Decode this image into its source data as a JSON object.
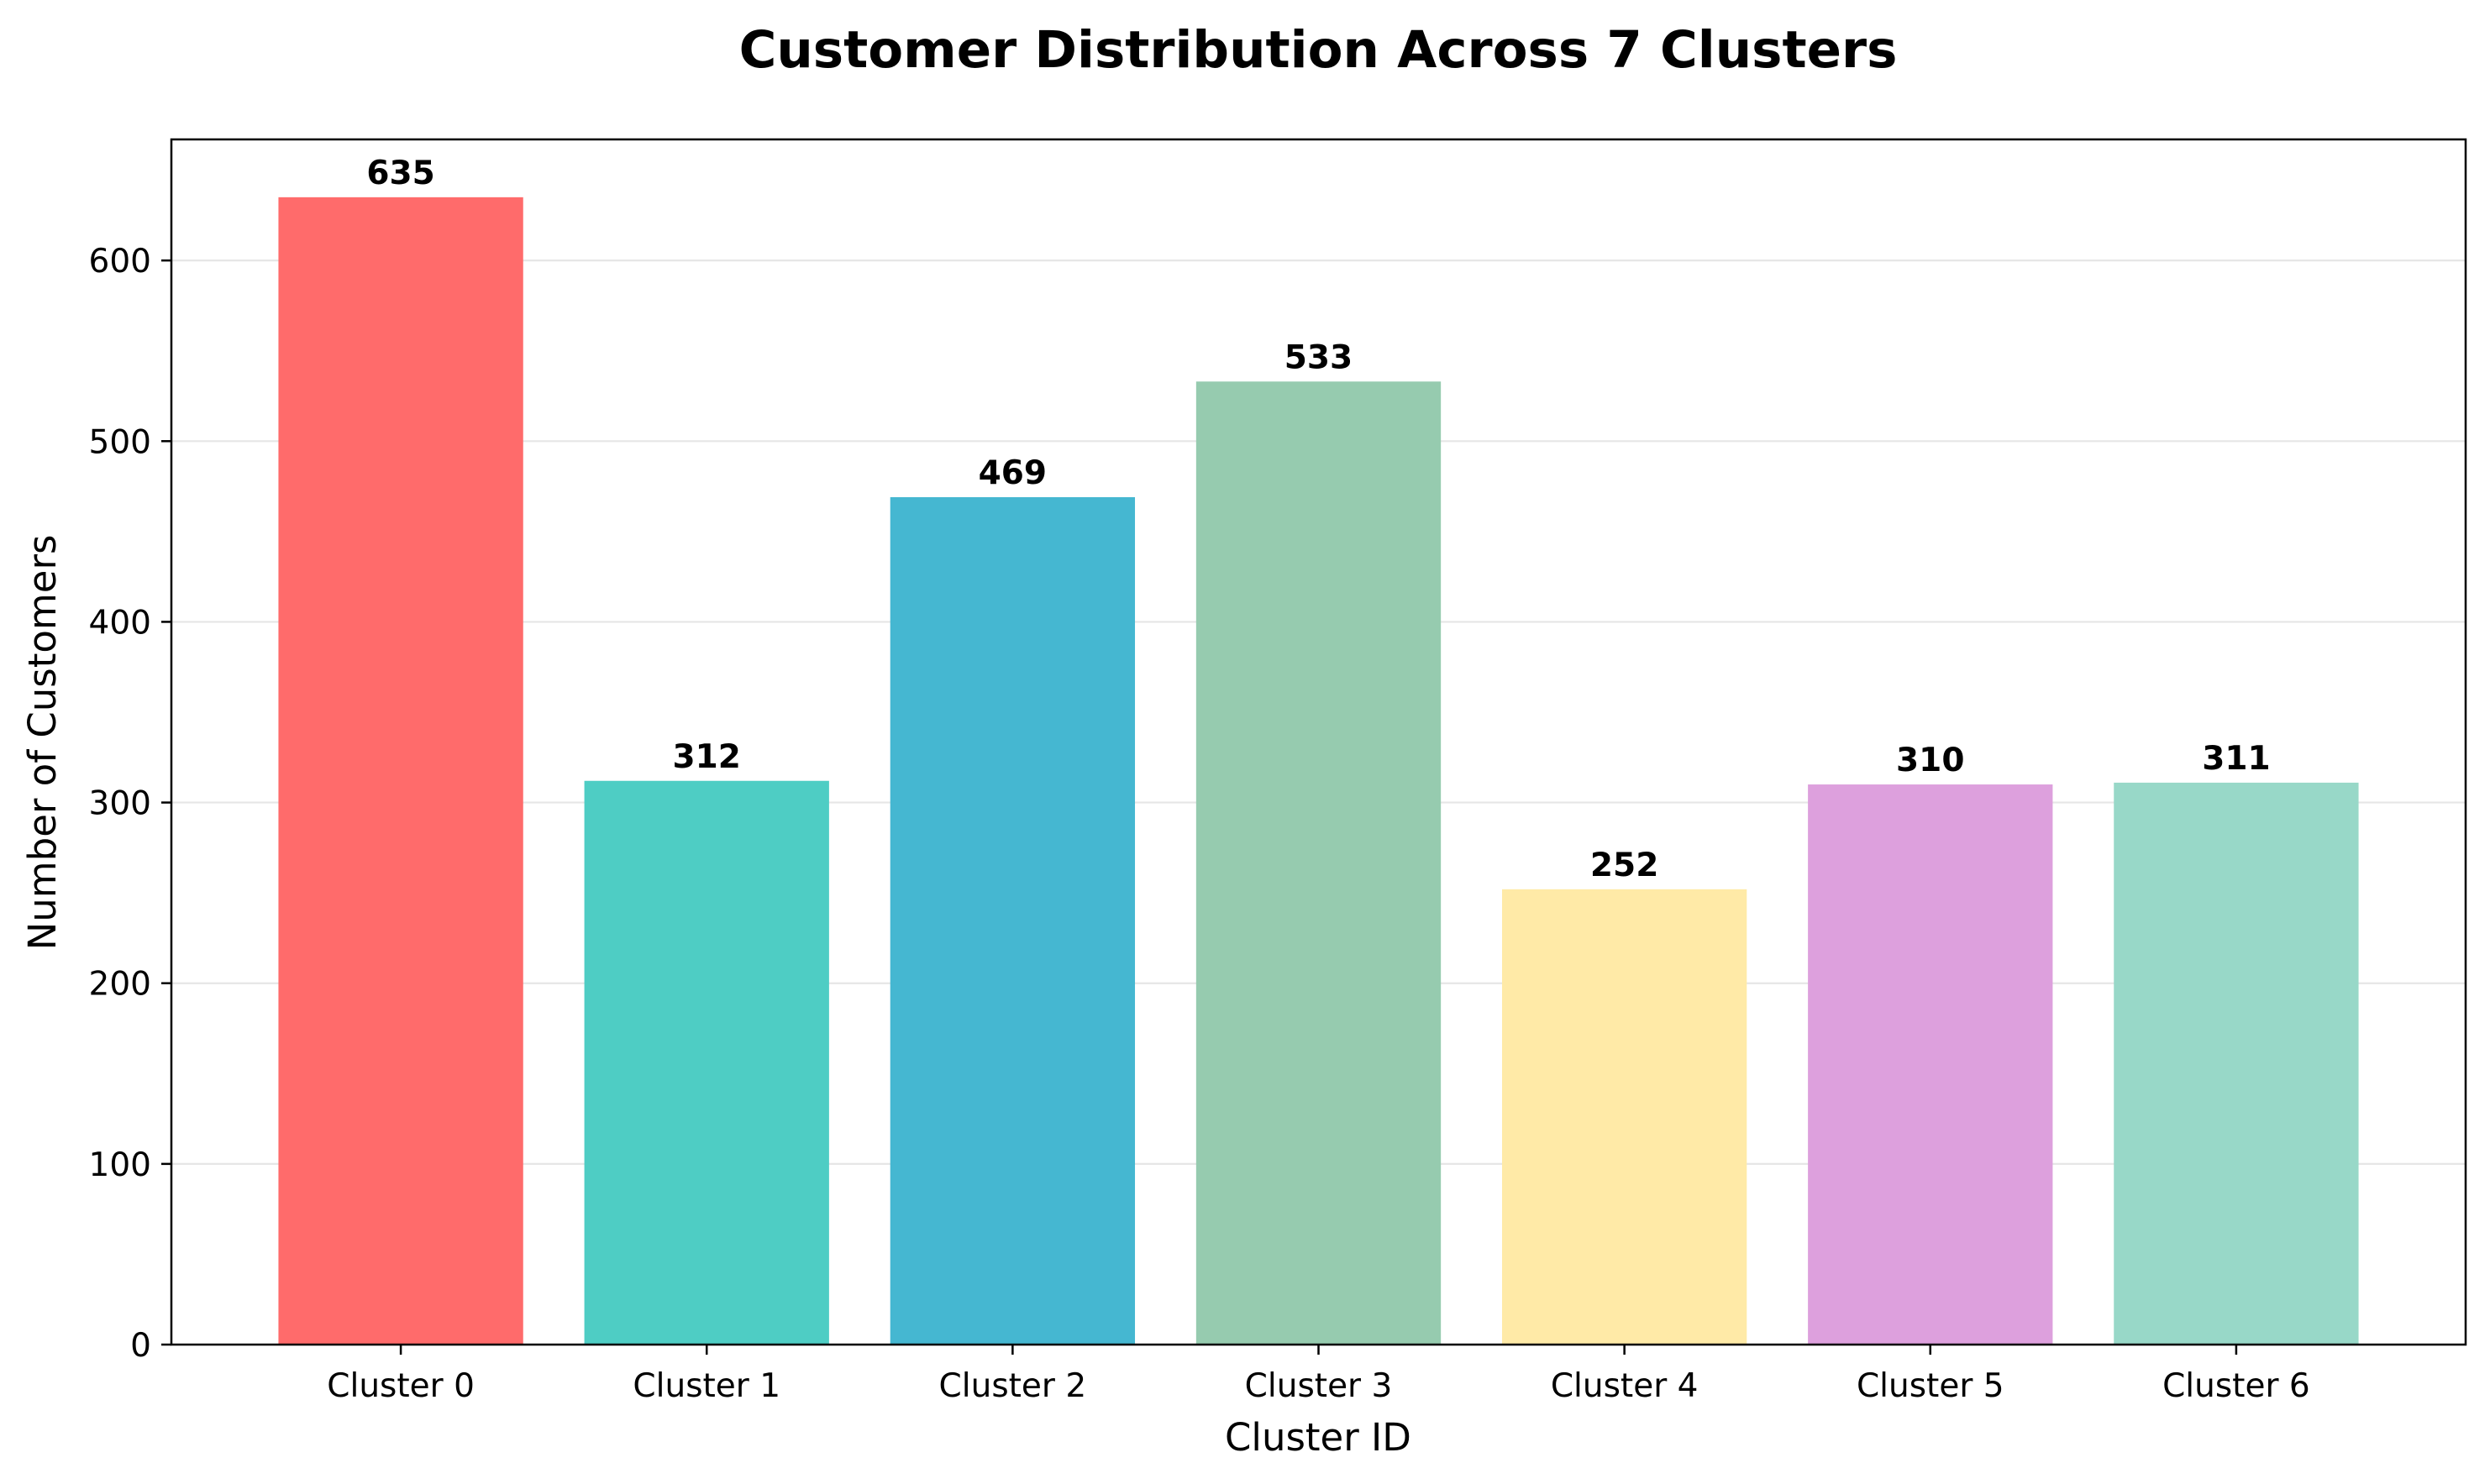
{
  "chart_data": {
    "type": "bar",
    "title": "Customer Distribution Across 7 Clusters",
    "xlabel": "Cluster ID",
    "ylabel": "Number of Customers",
    "categories": [
      "Cluster 0",
      "Cluster 1",
      "Cluster 2",
      "Cluster 3",
      "Cluster 4",
      "Cluster 5",
      "Cluster 6"
    ],
    "values": [
      635,
      312,
      469,
      533,
      252,
      310,
      311
    ],
    "data_labels": [
      "635",
      "312",
      "469",
      "533",
      "252",
      "310",
      "311"
    ],
    "colors": [
      "#ff6b6b",
      "#4ecdc4",
      "#45b7d1",
      "#96cbaf",
      "#ffeaa7",
      "#dda0dd",
      "#98d8c8"
    ],
    "ylim": [
      0,
      667
    ],
    "yticks": [
      0,
      100,
      200,
      300,
      400,
      500,
      600
    ],
    "ytick_labels": [
      "0",
      "100",
      "200",
      "300",
      "400",
      "500",
      "600"
    ],
    "grid": "y-axis, light gray",
    "legend": "none"
  }
}
